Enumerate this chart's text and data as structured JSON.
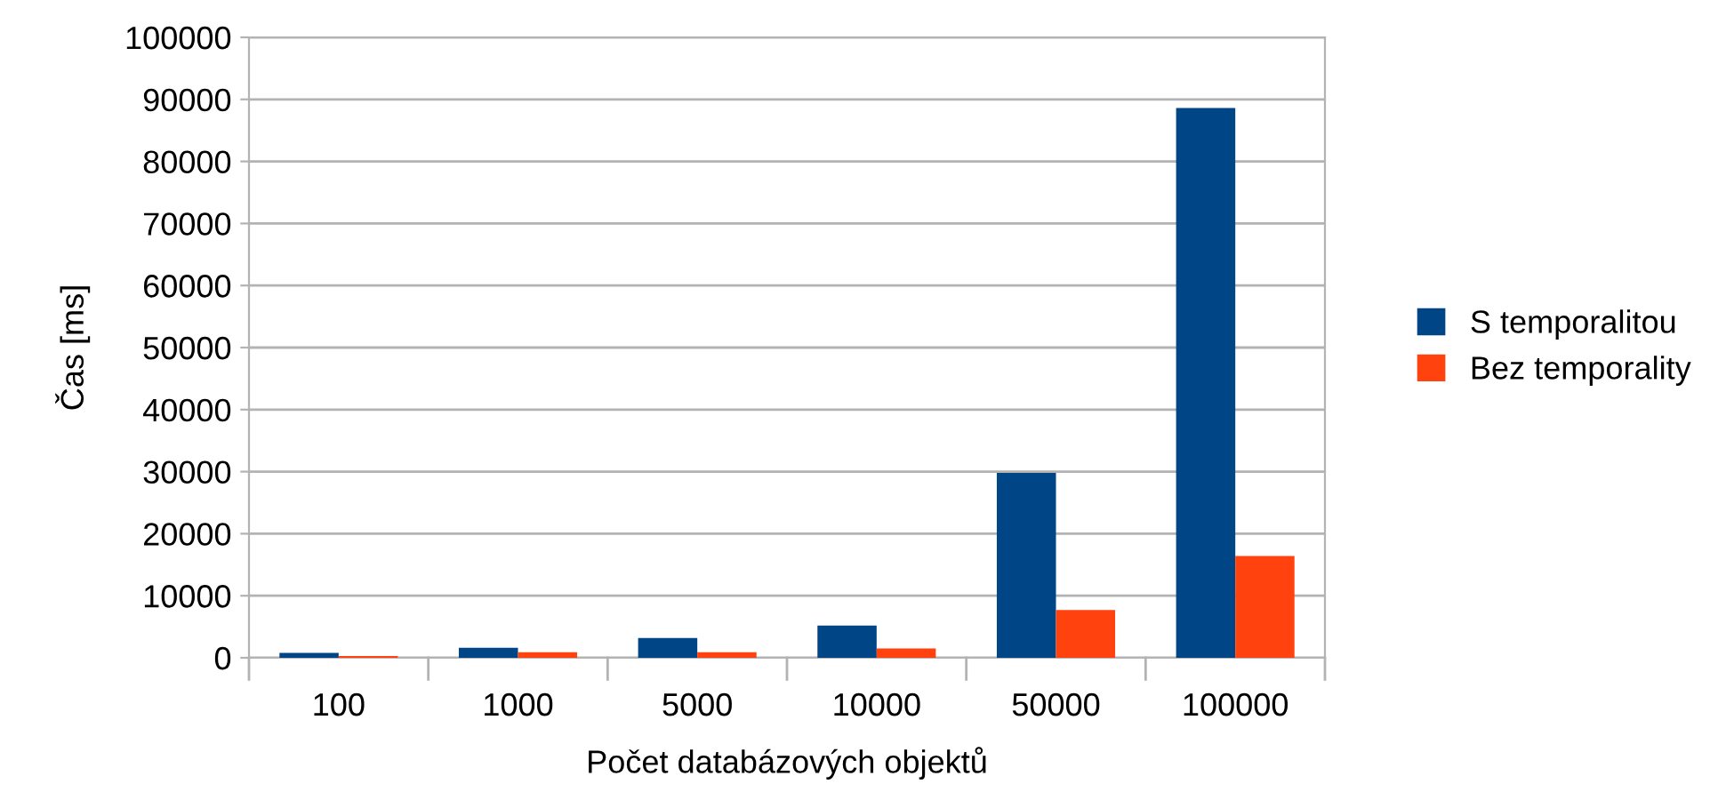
{
  "chart_data": {
    "type": "bar",
    "xlabel": "Počet databázových objektů",
    "ylabel": "Čas [ms]",
    "categories": [
      "100",
      "1000",
      "5000",
      "10000",
      "50000",
      "100000"
    ],
    "series": [
      {
        "name": "S temporalitou",
        "color": "#004586",
        "values": [
          800,
          1600,
          3200,
          5200,
          29800,
          88600
        ]
      },
      {
        "name": "Bez temporality",
        "color": "#ff420e",
        "values": [
          300,
          900,
          900,
          1500,
          7700,
          16400
        ]
      }
    ],
    "ylim": [
      0,
      100000
    ],
    "yticks": [
      0,
      10000,
      20000,
      30000,
      40000,
      50000,
      60000,
      70000,
      80000,
      90000,
      100000
    ],
    "grid": "y",
    "legend": "right"
  }
}
